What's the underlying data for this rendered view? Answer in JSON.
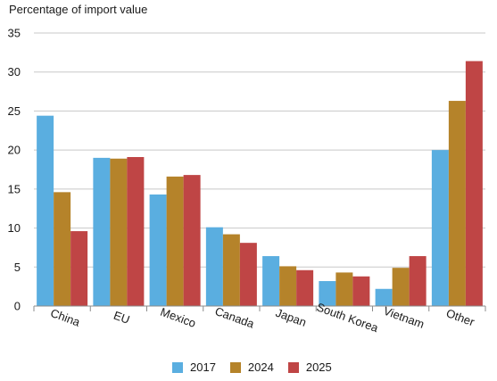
{
  "chart_data": {
    "type": "bar",
    "ylabel": "Percentage of import value",
    "ylim": [
      0,
      35
    ],
    "yticks": [
      0,
      5,
      10,
      15,
      20,
      25,
      30,
      35
    ],
    "grid": true,
    "legend_position": "bottom",
    "categories": [
      "China",
      "EU",
      "Mexico",
      "Canada",
      "Japan",
      "South Korea",
      "Vietnam",
      "Other"
    ],
    "series": [
      {
        "name": "2017",
        "color": "#5aaee0",
        "values": [
          24.4,
          19.0,
          14.3,
          10.1,
          6.4,
          3.2,
          2.2,
          20.0
        ]
      },
      {
        "name": "2024",
        "color": "#b5832a",
        "values": [
          14.6,
          18.9,
          16.6,
          9.2,
          5.1,
          4.3,
          4.9,
          26.3
        ]
      },
      {
        "name": "2025",
        "color": "#bf4545",
        "values": [
          9.6,
          19.1,
          16.8,
          8.1,
          4.6,
          3.8,
          6.4,
          31.4
        ]
      }
    ]
  }
}
